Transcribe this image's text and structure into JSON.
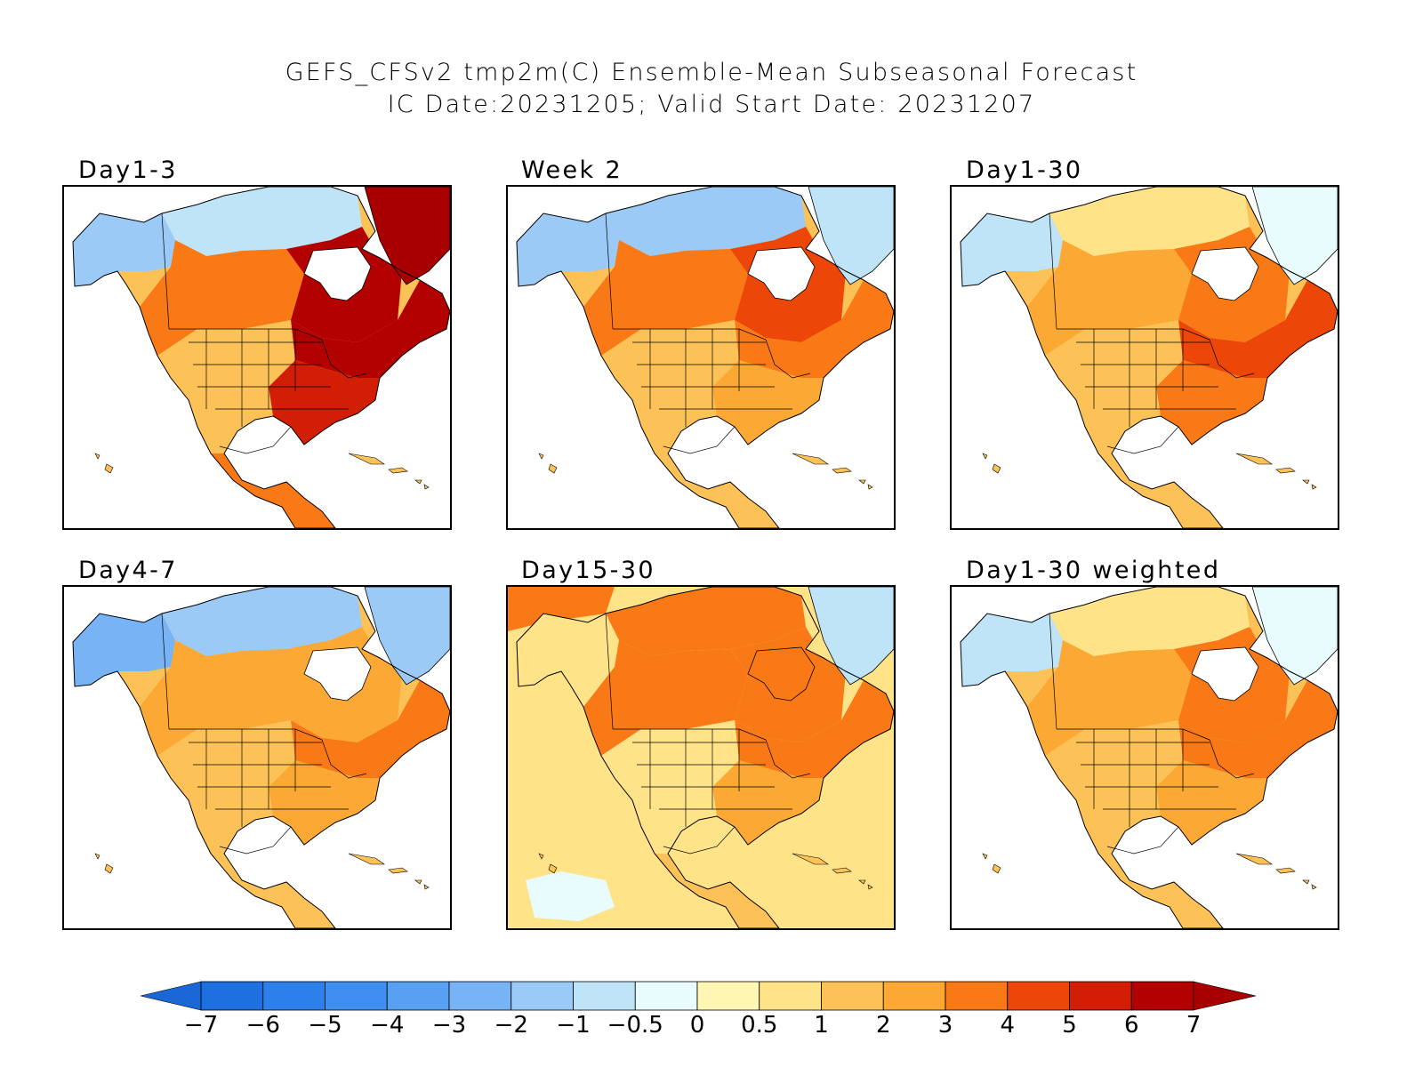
{
  "title": {
    "line1": "GEFS_CFSv2 tmp2m(C) Ensemble-Mean Subseasonal Forecast",
    "line2": "IC Date:20231205; Valid Start Date: 20231207"
  },
  "panels": [
    {
      "id": "day1-3",
      "label": "Day1-3",
      "anomaly": {
        "west_alaska": -2,
        "north_arctic": -1,
        "northwest_canada": 3,
        "hudson_bay": 6,
        "great_lakes": 6,
        "eastern_us": 5,
        "western_us": 1,
        "mexico": 3,
        "greenland": 7
      }
    },
    {
      "id": "week2",
      "label": "Week 2",
      "anomaly": {
        "west_alaska": -2,
        "north_arctic": -2,
        "northwest_canada": 3,
        "hudson_bay": 4,
        "great_lakes": 3,
        "eastern_us": 2,
        "western_us": 1,
        "mexico": 1,
        "greenland": -1
      }
    },
    {
      "id": "day1-30",
      "label": "Day1-30",
      "anomaly": {
        "west_alaska": -1,
        "north_arctic": 0.5,
        "northwest_canada": 2,
        "hudson_bay": 3,
        "great_lakes": 4,
        "eastern_us": 3,
        "western_us": 1,
        "mexico": 1,
        "greenland": -0.5
      }
    },
    {
      "id": "day4-7",
      "label": "Day4-7",
      "anomaly": {
        "west_alaska": -3,
        "north_arctic": -2,
        "northwest_canada": 2,
        "hudson_bay": 2,
        "great_lakes": 3,
        "eastern_us": 2,
        "western_us": 1,
        "mexico": 1,
        "greenland": -2
      }
    },
    {
      "id": "day15-30",
      "label": "Day15-30",
      "anomaly": {
        "west_alaska": 0.5,
        "north_arctic": 3,
        "northwest_canada": 3,
        "hudson_bay": 3,
        "great_lakes": 3,
        "eastern_us": 2,
        "western_us": 0.5,
        "mexico": 1,
        "greenland": -1
      }
    },
    {
      "id": "day1-30-weighted",
      "label": "Day1-30 weighted",
      "anomaly": {
        "west_alaska": -1,
        "north_arctic": 0.5,
        "northwest_canada": 2,
        "hudson_bay": 3,
        "great_lakes": 3,
        "eastern_us": 2,
        "western_us": 1,
        "mexico": 1,
        "greenland": -0.5
      }
    }
  ],
  "colorbar": {
    "tick_labels": [
      "−7",
      "−6",
      "−5",
      "−4",
      "−3",
      "−2",
      "−1",
      "−0.5",
      "0",
      "0.5",
      "1",
      "2",
      "3",
      "4",
      "5",
      "6",
      "7"
    ],
    "thresholds": [
      -7,
      -6,
      -5,
      -4,
      -3,
      -2,
      -1,
      -0.5,
      0,
      0.5,
      1,
      2,
      3,
      4,
      5,
      6,
      7
    ],
    "colors": [
      "#1e6fe0",
      "#2d80ea",
      "#3f8ff0",
      "#58a0f2",
      "#78b4f5",
      "#9bcaf7",
      "#bfe4f8",
      "#e8fbfd",
      "#fff6b4",
      "#ffe389",
      "#fdc257",
      "#fba834",
      "#f97916",
      "#ec4608",
      "#d31e06",
      "#b30000"
    ],
    "under_color": "#1a68d8",
    "over_color": "#a80000"
  }
}
